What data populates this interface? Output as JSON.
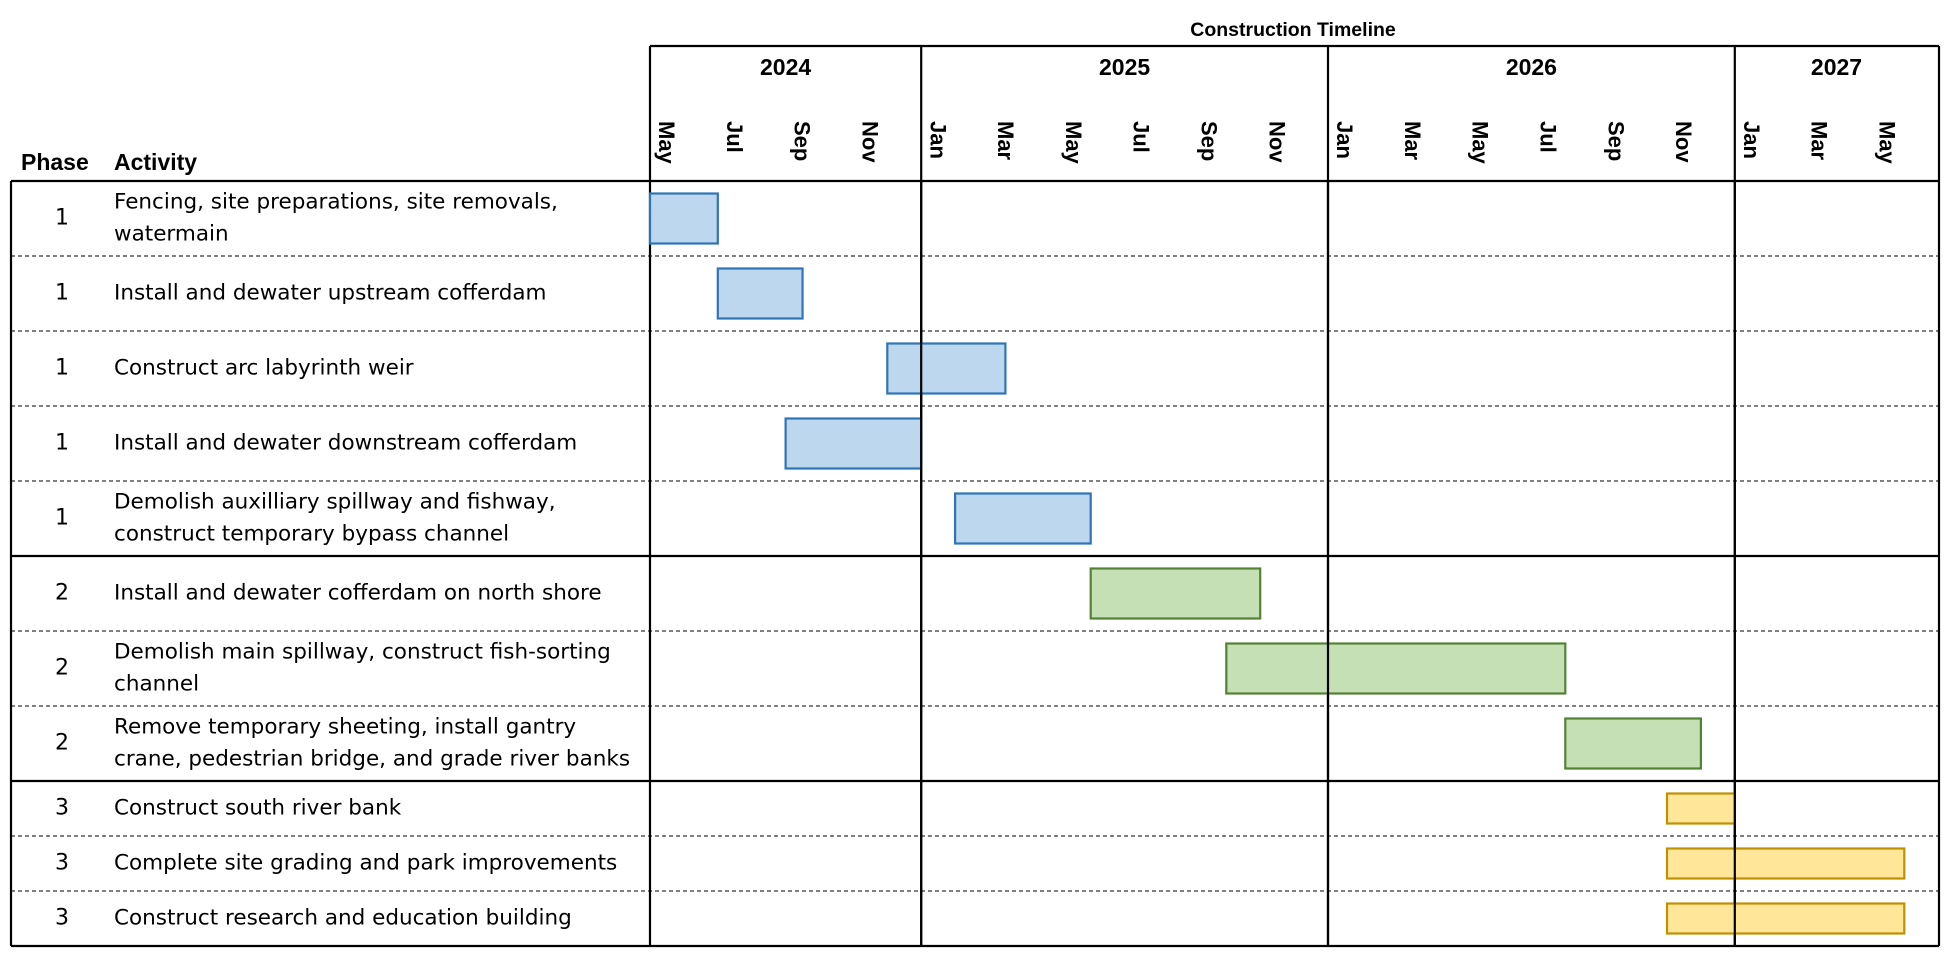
{
  "chart_data": {
    "type": "gantt",
    "title": "Construction Timeline",
    "columns": {
      "phase": "Phase",
      "activity": "Activity"
    },
    "years": [
      {
        "label": "2024",
        "start": "2024-05",
        "end": "2024-12"
      },
      {
        "label": "2025",
        "start": "2025-01",
        "end": "2025-12"
      },
      {
        "label": "2026",
        "start": "2026-01",
        "end": "2026-12"
      },
      {
        "label": "2027",
        "start": "2027-01",
        "end": "2027-06"
      }
    ],
    "month_ticks": [
      {
        "label": "May",
        "month": "2024-05"
      },
      {
        "label": "Jul",
        "month": "2024-07"
      },
      {
        "label": "Sep",
        "month": "2024-09"
      },
      {
        "label": "Nov",
        "month": "2024-11"
      },
      {
        "label": "Jan",
        "month": "2025-01"
      },
      {
        "label": "Mar",
        "month": "2025-03"
      },
      {
        "label": "May",
        "month": "2025-05"
      },
      {
        "label": "Jul",
        "month": "2025-07"
      },
      {
        "label": "Sep",
        "month": "2025-09"
      },
      {
        "label": "Nov",
        "month": "2025-11"
      },
      {
        "label": "Jan",
        "month": "2026-01"
      },
      {
        "label": "Mar",
        "month": "2026-03"
      },
      {
        "label": "May",
        "month": "2026-05"
      },
      {
        "label": "Jul",
        "month": "2026-07"
      },
      {
        "label": "Sep",
        "month": "2026-09"
      },
      {
        "label": "Nov",
        "month": "2026-11"
      },
      {
        "label": "Jan",
        "month": "2027-01"
      },
      {
        "label": "Mar",
        "month": "2027-03"
      },
      {
        "label": "May",
        "month": "2027-05"
      }
    ],
    "phase_colors": {
      "1": {
        "fill": "#bdd7ee",
        "stroke": "#2e75b6"
      },
      "2": {
        "fill": "#c5e0b4",
        "stroke": "#548235"
      },
      "3": {
        "fill": "#ffe699",
        "stroke": "#bf9000"
      }
    },
    "tasks": [
      {
        "phase": "1",
        "lines": [
          "Fencing, site preparations, site removals,",
          "watermain"
        ],
        "start": "2024-05-01",
        "end": "2024-06-30"
      },
      {
        "phase": "1",
        "lines": [
          "Install and dewater upstream cofferdam"
        ],
        "start": "2024-07-01",
        "end": "2024-09-15"
      },
      {
        "phase": "1",
        "lines": [
          "Construct arc labyrinth weir"
        ],
        "start": "2024-12-01",
        "end": "2025-03-15"
      },
      {
        "phase": "1",
        "lines": [
          "Install and dewater downstream cofferdam"
        ],
        "start": "2024-09-01",
        "end": "2024-12-31"
      },
      {
        "phase": "1",
        "lines": [
          "Demolish auxilliary spillway and fishway,",
          "construct temporary bypass channel"
        ],
        "start": "2025-02-01",
        "end": "2025-05-31"
      },
      {
        "phase": "2",
        "lines": [
          "Install and dewater cofferdam on north shore"
        ],
        "start": "2025-06-01",
        "end": "2025-10-31"
      },
      {
        "phase": "2",
        "lines": [
          "Demolish main spillway, construct fish-sorting",
          "channel"
        ],
        "start": "2025-10-01",
        "end": "2026-07-31"
      },
      {
        "phase": "2",
        "lines": [
          "Remove temporary sheeting, install gantry",
          "crane, pedestrian bridge, and grade river banks"
        ],
        "start": "2026-08-01",
        "end": "2026-11-30"
      },
      {
        "phase": "3",
        "lines": [
          "Construct south river bank"
        ],
        "start": "2026-11-01",
        "end": "2026-12-31"
      },
      {
        "phase": "3",
        "lines": [
          "Complete site grading and park improvements"
        ],
        "start": "2026-11-01",
        "end": "2027-05-31"
      },
      {
        "phase": "3",
        "lines": [
          "Construct research and education building"
        ],
        "start": "2026-11-01",
        "end": "2027-05-31"
      }
    ]
  }
}
